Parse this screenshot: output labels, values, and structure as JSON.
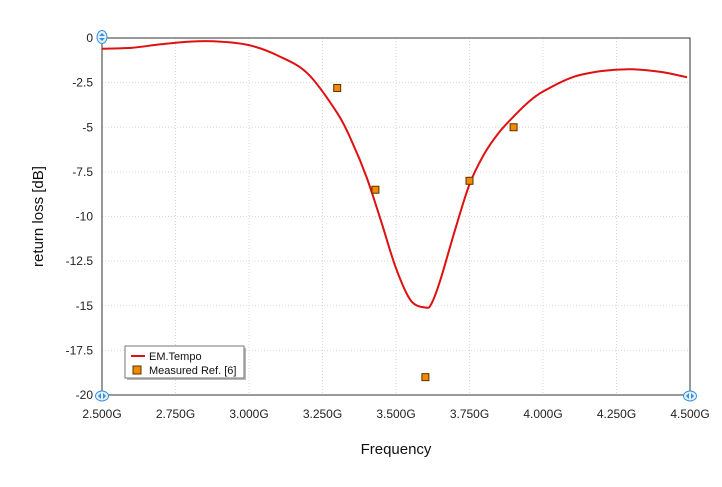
{
  "chart_data": {
    "type": "line",
    "title": "",
    "xlabel": "Frequency",
    "ylabel": "return loss [dB]",
    "xlim": [
      2.5,
      4.5
    ],
    "ylim": [
      -20,
      0
    ],
    "x_ticks": [
      2.5,
      2.75,
      3.0,
      3.25,
      3.5,
      3.75,
      4.0,
      4.25,
      4.5
    ],
    "x_tick_labels": [
      "2.500G",
      "2.750G",
      "3.000G",
      "3.250G",
      "3.500G",
      "3.750G",
      "4.000G",
      "4.250G",
      "4.500G"
    ],
    "y_ticks": [
      0,
      -2.5,
      -5,
      -7.5,
      -10,
      -12.5,
      -15,
      -17.5,
      -20
    ],
    "y_tick_labels": [
      "0",
      "-2.5",
      "-5",
      "-7.5",
      "-10",
      "-12.5",
      "-15",
      "-17.5",
      "-20"
    ],
    "grid": true,
    "legend_position": "bottom-left",
    "series": [
      {
        "name": "EM.Tempo",
        "kind": "line",
        "color": "#e01010",
        "x": [
          2.5,
          2.6,
          2.7,
          2.8,
          2.9,
          3.0,
          3.1,
          3.2,
          3.3,
          3.35,
          3.4,
          3.45,
          3.5,
          3.55,
          3.6,
          3.62,
          3.65,
          3.7,
          3.75,
          3.8,
          3.85,
          3.9,
          3.95,
          4.0,
          4.1,
          4.2,
          4.3,
          4.4,
          4.49
        ],
        "y": [
          -0.6,
          -0.55,
          -0.35,
          -0.2,
          -0.2,
          -0.4,
          -1.0,
          -2.0,
          -4.2,
          -5.8,
          -7.8,
          -10.3,
          -12.9,
          -14.7,
          -15.1,
          -14.9,
          -13.6,
          -10.8,
          -8.2,
          -6.5,
          -5.3,
          -4.4,
          -3.6,
          -3.0,
          -2.2,
          -1.85,
          -1.75,
          -1.9,
          -2.2
        ]
      },
      {
        "name": "Measured Ref. [6]",
        "kind": "scatter",
        "color": "#f28a00",
        "x": [
          3.3,
          3.43,
          3.6,
          3.75,
          3.9
        ],
        "y": [
          -2.8,
          -8.5,
          -19.0,
          -8.0,
          -5.0
        ]
      }
    ]
  }
}
